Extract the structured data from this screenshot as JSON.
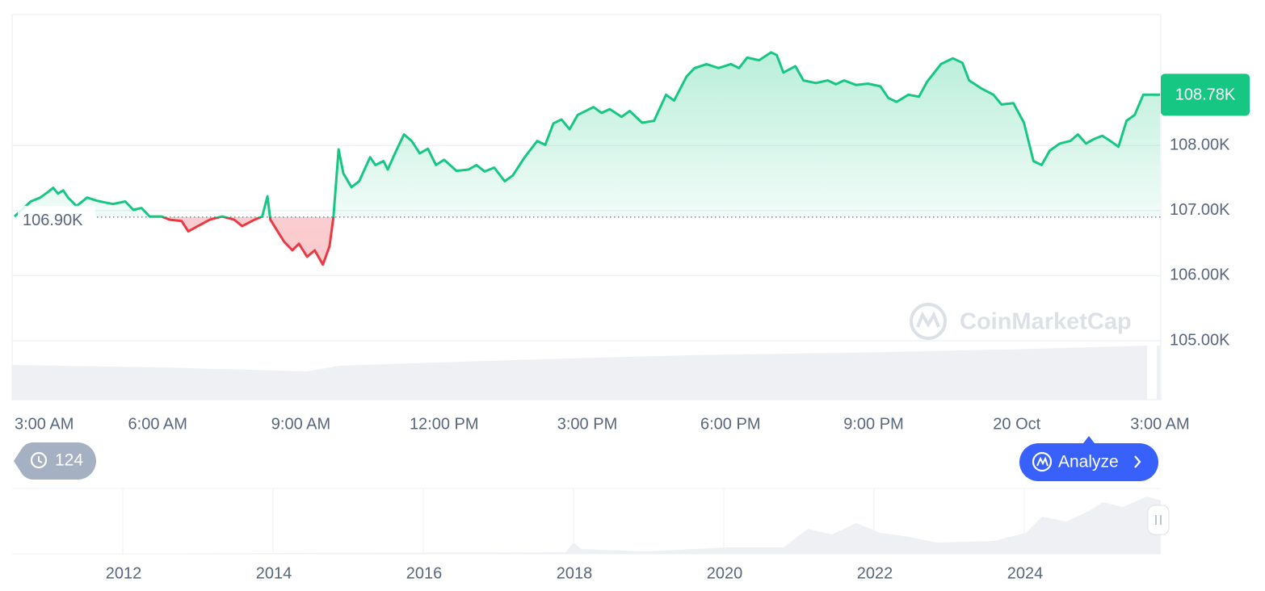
{
  "chart_data": {
    "type": "line",
    "x": [
      0,
      0.34,
      0.54,
      0.71,
      0.81,
      0.91,
      1.02,
      1.12,
      1.3,
      1.52,
      1.73,
      2.06,
      2.32,
      2.49,
      2.66,
      2.83,
      3.08,
      3.25,
      3.5,
      3.64,
      3.84,
      4.09,
      4.35,
      4.6,
      4.77,
      5.03,
      5.19,
      5.3,
      5.36,
      5.53,
      5.65,
      5.82,
      5.96,
      6.13,
      6.29,
      6.46,
      6.6,
      6.68,
      6.79,
      6.89,
      7.06,
      7.22,
      7.45,
      7.56,
      7.73,
      7.82,
      7.99,
      8.16,
      8.32,
      8.49,
      8.66,
      8.83,
      9.0,
      9.26,
      9.51,
      9.68,
      9.85,
      10.05,
      10.27,
      10.44,
      10.69,
      10.95,
      11.12,
      11.29,
      11.46,
      11.63,
      11.8,
      12.13,
      12.3,
      12.47,
      12.72,
      12.89,
      13.15,
      13.4,
      13.65,
      13.82,
      14.08,
      14.25,
      14.5,
      14.75,
      15.01,
      15.18,
      15.35,
      15.6,
      15.85,
      15.97,
      16.11,
      16.36,
      16.53,
      16.79,
      17.04,
      17.21,
      17.38,
      17.63,
      17.88,
      18.14,
      18.31,
      18.48,
      18.73,
      18.95,
      19.12,
      19.41,
      19.66,
      19.86,
      20.0,
      20.25,
      20.51,
      20.68,
      20.93,
      21.15,
      21.35,
      21.52,
      21.69,
      21.9,
      22.12,
      22.28,
      22.45,
      22.62,
      22.79,
      22.96,
      23.13,
      23.3,
      23.47,
      23.65,
      24
    ],
    "values": [
      106.91,
      107.14,
      107.2,
      107.29,
      107.35,
      107.26,
      107.31,
      107.2,
      107.07,
      107.2,
      107.15,
      107.1,
      107.14,
      107.01,
      107.04,
      106.91,
      106.91,
      106.86,
      106.84,
      106.68,
      106.76,
      106.86,
      106.91,
      106.86,
      106.76,
      106.86,
      106.91,
      107.22,
      106.86,
      106.66,
      106.52,
      106.39,
      106.49,
      106.29,
      106.39,
      106.17,
      106.45,
      106.89,
      107.94,
      107.57,
      107.36,
      107.45,
      107.82,
      107.7,
      107.76,
      107.63,
      107.91,
      108.17,
      108.07,
      107.88,
      107.95,
      107.7,
      107.78,
      107.61,
      107.63,
      107.7,
      107.6,
      107.66,
      107.45,
      107.54,
      107.82,
      108.07,
      108.01,
      108.34,
      108.4,
      108.25,
      108.47,
      108.59,
      108.5,
      108.56,
      108.44,
      108.53,
      108.35,
      108.38,
      108.78,
      108.69,
      109.06,
      109.19,
      109.25,
      109.19,
      109.25,
      109.19,
      109.35,
      109.31,
      109.43,
      109.39,
      109.12,
      109.22,
      109.0,
      108.96,
      109.0,
      108.94,
      109.0,
      108.93,
      108.95,
      108.91,
      108.73,
      108.67,
      108.78,
      108.75,
      108.98,
      109.25,
      109.34,
      109.27,
      109.0,
      108.88,
      108.78,
      108.63,
      108.65,
      108.35,
      107.76,
      107.7,
      107.92,
      108.03,
      108.07,
      108.17,
      108.03,
      108.1,
      108.15,
      108.07,
      107.98,
      108.38,
      108.47,
      108.78,
      108.78
    ],
    "colors": {
      "above": "#16c784",
      "below": "#ea3943"
    },
    "xlim": [
      0,
      24
    ],
    "xticks": [
      {
        "value": 0,
        "label": "3:00 AM"
      },
      {
        "value": 3,
        "label": "6:00 AM"
      },
      {
        "value": 6,
        "label": "9:00 AM"
      },
      {
        "value": 9,
        "label": "12:00 PM"
      },
      {
        "value": 12,
        "label": "3:00 PM"
      },
      {
        "value": 15,
        "label": "6:00 PM"
      },
      {
        "value": 18,
        "label": "9:00 PM"
      },
      {
        "value": 21,
        "label": "20 Oct"
      },
      {
        "value": 24,
        "label": "3:00 AM"
      }
    ],
    "ylim": [
      105,
      110
    ],
    "yticks": [
      {
        "value": 105,
        "label": "105.00K"
      },
      {
        "value": 106,
        "label": "106.00K"
      },
      {
        "value": 107,
        "label": "107.00K"
      },
      {
        "value": 108,
        "label": "108.00K"
      }
    ],
    "grid": true,
    "baseline": {
      "value": 106.9,
      "label": "106.90K"
    },
    "last_price": {
      "value": 108.78,
      "label": "108.78K"
    },
    "watermark": "CoinMarketCap"
  },
  "navigator": {
    "xticks": [
      "2012",
      "2014",
      "2016",
      "2018",
      "2020",
      "2022",
      "2024"
    ]
  },
  "controls": {
    "history_count": 124,
    "analyze_button": "Analyze"
  }
}
